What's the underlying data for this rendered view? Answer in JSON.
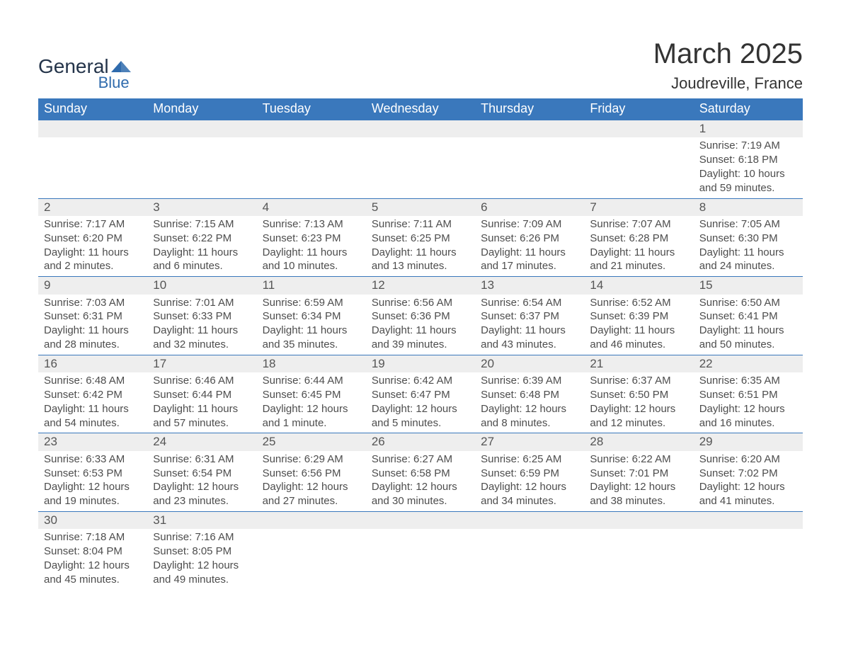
{
  "brand": {
    "text_general": "General",
    "text_blue": "Blue",
    "shape_color": "#2f6bad",
    "general_color": "#24344a"
  },
  "header": {
    "month_title": "March 2025",
    "location": "Joudreville, France"
  },
  "theme": {
    "header_bg": "#3a78bc",
    "header_text": "#ffffff",
    "row_divider": "#3a78bc",
    "daybar_bg": "#eeeeee",
    "body_bg": "#ffffff",
    "text_color": "#4d4d4d",
    "font_family": "Arial, Helvetica, sans-serif",
    "title_fontsize": 40,
    "location_fontsize": 22,
    "weekday_fontsize": 18,
    "daynum_fontsize": 17,
    "body_fontsize": 15
  },
  "calendar": {
    "weekdays": [
      "Sunday",
      "Monday",
      "Tuesday",
      "Wednesday",
      "Thursday",
      "Friday",
      "Saturday"
    ],
    "weeks": [
      [
        null,
        null,
        null,
        null,
        null,
        null,
        {
          "n": "1",
          "sr": "7:19 AM",
          "ss": "6:18 PM",
          "dl": "10 hours and 59 minutes."
        }
      ],
      [
        {
          "n": "2",
          "sr": "7:17 AM",
          "ss": "6:20 PM",
          "dl": "11 hours and 2 minutes."
        },
        {
          "n": "3",
          "sr": "7:15 AM",
          "ss": "6:22 PM",
          "dl": "11 hours and 6 minutes."
        },
        {
          "n": "4",
          "sr": "7:13 AM",
          "ss": "6:23 PM",
          "dl": "11 hours and 10 minutes."
        },
        {
          "n": "5",
          "sr": "7:11 AM",
          "ss": "6:25 PM",
          "dl": "11 hours and 13 minutes."
        },
        {
          "n": "6",
          "sr": "7:09 AM",
          "ss": "6:26 PM",
          "dl": "11 hours and 17 minutes."
        },
        {
          "n": "7",
          "sr": "7:07 AM",
          "ss": "6:28 PM",
          "dl": "11 hours and 21 minutes."
        },
        {
          "n": "8",
          "sr": "7:05 AM",
          "ss": "6:30 PM",
          "dl": "11 hours and 24 minutes."
        }
      ],
      [
        {
          "n": "9",
          "sr": "7:03 AM",
          "ss": "6:31 PM",
          "dl": "11 hours and 28 minutes."
        },
        {
          "n": "10",
          "sr": "7:01 AM",
          "ss": "6:33 PM",
          "dl": "11 hours and 32 minutes."
        },
        {
          "n": "11",
          "sr": "6:59 AM",
          "ss": "6:34 PM",
          "dl": "11 hours and 35 minutes."
        },
        {
          "n": "12",
          "sr": "6:56 AM",
          "ss": "6:36 PM",
          "dl": "11 hours and 39 minutes."
        },
        {
          "n": "13",
          "sr": "6:54 AM",
          "ss": "6:37 PM",
          "dl": "11 hours and 43 minutes."
        },
        {
          "n": "14",
          "sr": "6:52 AM",
          "ss": "6:39 PM",
          "dl": "11 hours and 46 minutes."
        },
        {
          "n": "15",
          "sr": "6:50 AM",
          "ss": "6:41 PM",
          "dl": "11 hours and 50 minutes."
        }
      ],
      [
        {
          "n": "16",
          "sr": "6:48 AM",
          "ss": "6:42 PM",
          "dl": "11 hours and 54 minutes."
        },
        {
          "n": "17",
          "sr": "6:46 AM",
          "ss": "6:44 PM",
          "dl": "11 hours and 57 minutes."
        },
        {
          "n": "18",
          "sr": "6:44 AM",
          "ss": "6:45 PM",
          "dl": "12 hours and 1 minute."
        },
        {
          "n": "19",
          "sr": "6:42 AM",
          "ss": "6:47 PM",
          "dl": "12 hours and 5 minutes."
        },
        {
          "n": "20",
          "sr": "6:39 AM",
          "ss": "6:48 PM",
          "dl": "12 hours and 8 minutes."
        },
        {
          "n": "21",
          "sr": "6:37 AM",
          "ss": "6:50 PM",
          "dl": "12 hours and 12 minutes."
        },
        {
          "n": "22",
          "sr": "6:35 AM",
          "ss": "6:51 PM",
          "dl": "12 hours and 16 minutes."
        }
      ],
      [
        {
          "n": "23",
          "sr": "6:33 AM",
          "ss": "6:53 PM",
          "dl": "12 hours and 19 minutes."
        },
        {
          "n": "24",
          "sr": "6:31 AM",
          "ss": "6:54 PM",
          "dl": "12 hours and 23 minutes."
        },
        {
          "n": "25",
          "sr": "6:29 AM",
          "ss": "6:56 PM",
          "dl": "12 hours and 27 minutes."
        },
        {
          "n": "26",
          "sr": "6:27 AM",
          "ss": "6:58 PM",
          "dl": "12 hours and 30 minutes."
        },
        {
          "n": "27",
          "sr": "6:25 AM",
          "ss": "6:59 PM",
          "dl": "12 hours and 34 minutes."
        },
        {
          "n": "28",
          "sr": "6:22 AM",
          "ss": "7:01 PM",
          "dl": "12 hours and 38 minutes."
        },
        {
          "n": "29",
          "sr": "6:20 AM",
          "ss": "7:02 PM",
          "dl": "12 hours and 41 minutes."
        }
      ],
      [
        {
          "n": "30",
          "sr": "7:18 AM",
          "ss": "8:04 PM",
          "dl": "12 hours and 45 minutes."
        },
        {
          "n": "31",
          "sr": "7:16 AM",
          "ss": "8:05 PM",
          "dl": "12 hours and 49 minutes."
        },
        null,
        null,
        null,
        null,
        null
      ]
    ],
    "labels": {
      "sunrise_prefix": "Sunrise: ",
      "sunset_prefix": "Sunset: ",
      "daylight_prefix": "Daylight: "
    }
  }
}
